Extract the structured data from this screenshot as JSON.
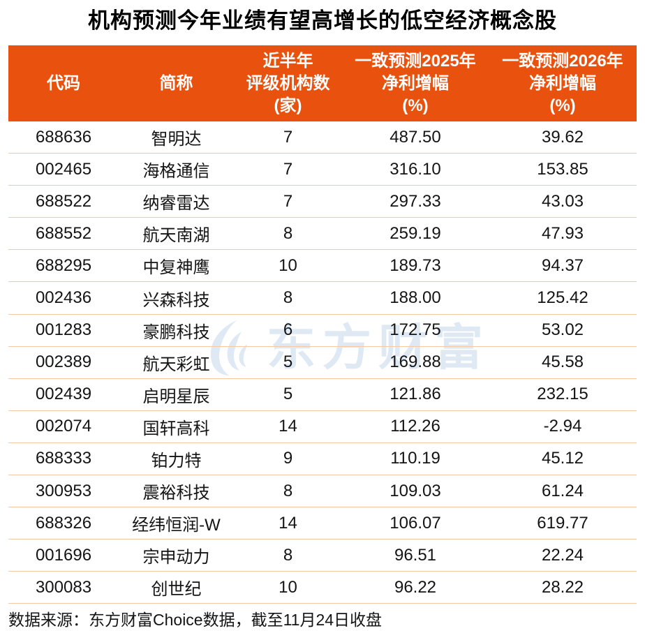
{
  "title": "机构预测今年业绩有望高增长的低空经济概念股",
  "chart_data": {
    "type": "table",
    "title": "机构预测今年业绩有望高增长的低空经济概念股",
    "columns": [
      "代码",
      "简称",
      "近半年评级机构数(家)",
      "一致预测2025年净利增幅(%)",
      "一致预测2026年净利增幅(%)"
    ],
    "rows": [
      [
        "688636",
        "智明达",
        "7",
        "487.50",
        "39.62"
      ],
      [
        "002465",
        "海格通信",
        "7",
        "316.10",
        "153.85"
      ],
      [
        "688522",
        "纳睿雷达",
        "7",
        "297.33",
        "43.03"
      ],
      [
        "688552",
        "航天南湖",
        "8",
        "259.19",
        "47.93"
      ],
      [
        "688295",
        "中复神鹰",
        "10",
        "189.73",
        "94.37"
      ],
      [
        "002436",
        "兴森科技",
        "8",
        "188.00",
        "125.42"
      ],
      [
        "001283",
        "豪鹏科技",
        "6",
        "172.75",
        "53.02"
      ],
      [
        "002389",
        "航天彩虹",
        "5",
        "169.88",
        "45.58"
      ],
      [
        "002439",
        "启明星辰",
        "5",
        "121.86",
        "232.15"
      ],
      [
        "002074",
        "国轩高科",
        "14",
        "112.26",
        "-2.94"
      ],
      [
        "688333",
        "铂力特",
        "9",
        "110.19",
        "45.12"
      ],
      [
        "300953",
        "震裕科技",
        "8",
        "109.03",
        "61.24"
      ],
      [
        "688326",
        "经纬恒润-W",
        "14",
        "106.07",
        "619.77"
      ],
      [
        "001696",
        "宗申动力",
        "8",
        "96.51",
        "22.24"
      ],
      [
        "300083",
        "创世纪",
        "10",
        "96.22",
        "28.22"
      ]
    ],
    "source_note": "数据来源：东方财富Choice数据，截至11月24日收盘"
  },
  "header_lines": [
    {
      "lines": [
        "代码"
      ]
    },
    {
      "lines": [
        "简称"
      ]
    },
    {
      "lines": [
        "近半年",
        "评级机构数",
        "(家)"
      ]
    },
    {
      "lines": [
        "一致预测2025年",
        "净利增幅",
        "(%)"
      ]
    },
    {
      "lines": [
        "一致预测2026年",
        "净利增幅",
        "(%)"
      ]
    }
  ],
  "watermark": {
    "text": "东方财富",
    "logo_icon": "eastmoney-swoosh-icon"
  },
  "footer": "数据来源：东方财富Choice数据，截至11月24日收盘",
  "colors": {
    "header_bg": "#E8520E",
    "header_text": "#FFFFFF",
    "row_divider": "#F6C9A3",
    "body_text": "#141414",
    "title_text": "#000000",
    "watermark": "#DFE9F4",
    "background": "#FFFFFF"
  }
}
